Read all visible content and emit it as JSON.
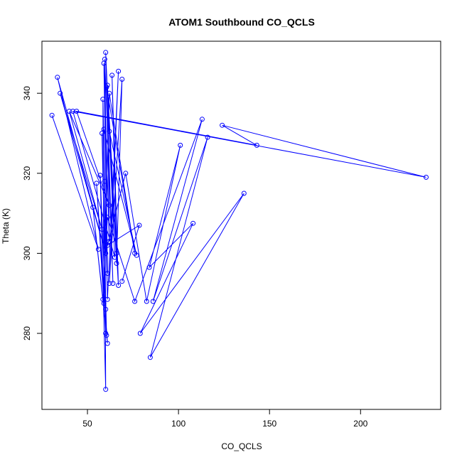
{
  "chart_data": {
    "type": "line",
    "title": "ATOM1 Southbound CO_QCLS",
    "xlabel": "CO_QCLS",
    "ylabel": "Theta (K)",
    "xlim": [
      25,
      244
    ],
    "ylim": [
      261,
      353
    ],
    "x_ticks": [
      50,
      100,
      150,
      200
    ],
    "x_tick_labels": [
      "50",
      "100",
      "150",
      "200"
    ],
    "y_ticks": [
      280,
      300,
      320,
      340
    ],
    "y_tick_labels": [
      "280",
      "300",
      "320",
      "340"
    ],
    "grid": false,
    "marker": "open-circle",
    "color": "#0000ff",
    "points": [
      [
        30.5,
        334.5
      ],
      [
        56,
        301
      ],
      [
        33.5,
        344
      ],
      [
        60,
        300
      ],
      [
        35,
        340
      ],
      [
        58,
        306
      ],
      [
        40,
        335.5
      ],
      [
        62,
        312
      ],
      [
        44,
        335.5
      ],
      [
        143,
        327
      ],
      [
        124,
        332
      ],
      [
        236,
        319
      ],
      [
        42,
        335.5
      ],
      [
        65,
        299
      ],
      [
        60,
        350.2
      ],
      [
        64,
        292.5
      ],
      [
        59.5,
        348.5
      ],
      [
        61,
        295
      ],
      [
        59,
        347.5
      ],
      [
        62,
        303
      ],
      [
        61,
        342
      ],
      [
        66,
        300
      ],
      [
        63.5,
        344.5
      ],
      [
        67,
        292
      ],
      [
        60.5,
        341.5
      ],
      [
        76,
        300
      ],
      [
        62,
        340
      ],
      [
        59,
        287.5
      ],
      [
        58.5,
        338.5
      ],
      [
        61,
        288.5
      ],
      [
        67,
        345.5
      ],
      [
        62,
        292.5
      ],
      [
        69,
        343.5
      ],
      [
        66,
        297.5
      ],
      [
        62,
        330.5
      ],
      [
        77,
        299.5
      ],
      [
        59,
        331
      ],
      [
        60,
        286
      ],
      [
        58,
        330
      ],
      [
        60.5,
        279.5
      ],
      [
        57,
        319.5
      ],
      [
        60,
        266
      ],
      [
        59.5,
        318
      ],
      [
        60,
        280
      ],
      [
        55,
        317.5
      ],
      [
        61,
        277.5
      ],
      [
        53,
        311.5
      ],
      [
        58.5,
        288.5
      ],
      [
        61,
        309
      ],
      [
        76,
        288
      ],
      [
        113,
        333.5
      ],
      [
        86,
        288
      ],
      [
        116,
        329
      ],
      [
        84.5,
        274
      ],
      [
        136,
        315
      ],
      [
        79,
        280
      ],
      [
        108,
        307.5
      ],
      [
        84,
        296.5
      ],
      [
        101,
        327
      ],
      [
        82.5,
        288
      ],
      [
        71,
        320
      ],
      [
        61,
        302
      ],
      [
        78.5,
        307
      ],
      [
        69,
        293
      ]
    ]
  }
}
